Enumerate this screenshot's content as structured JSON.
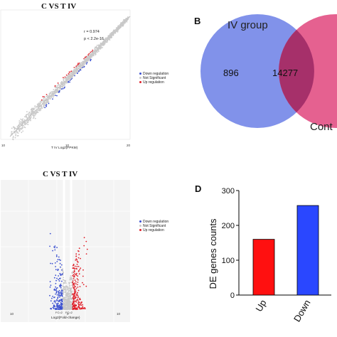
{
  "panel_labels": {
    "b": "B",
    "d": "D"
  },
  "legend": [
    {
      "label": "Down regulation",
      "color": "#3a4fd0"
    },
    {
      "label": "Not Significant",
      "color": "#c9c9c9"
    },
    {
      "label": "Up regulation",
      "color": "#e0202a"
    }
  ],
  "chart_data": [
    {
      "type": "scatter",
      "title": "C VS T IV",
      "annotations": [
        "r = 0.974",
        "p < 2.2e-16"
      ],
      "xlabel": "T IV Log2(FPKM)",
      "x_ticks": [
        "10",
        "10",
        "20"
      ],
      "ylim": [
        -10,
        20
      ],
      "xlim": [
        -10,
        20
      ],
      "series": [
        {
          "name": "Down regulation",
          "color": "#3a4fd0"
        },
        {
          "name": "Not Significant",
          "color": "#c9c9c9"
        },
        {
          "name": "Up regulation",
          "color": "#e0202a"
        }
      ]
    },
    {
      "type": "scatter",
      "title": "C VS T IV",
      "xlabel": "Log2(Fold-change)",
      "threshold_labels": [
        "FC=2",
        "FC=2"
      ],
      "x_ticks": [
        "10",
        "0",
        "10"
      ],
      "series": [
        {
          "name": "Down regulation",
          "color": "#3a4fd0"
        },
        {
          "name": "Not Significant",
          "color": "#c9c9c9"
        },
        {
          "name": "Up regulation",
          "color": "#e0202a"
        }
      ]
    },
    {
      "type": "venn",
      "sets": [
        {
          "name": "IV group",
          "only": 896,
          "color": "#6b7fe6"
        },
        {
          "name": "Cont",
          "color": "#e0457c"
        }
      ],
      "intersection": 14277
    },
    {
      "type": "bar",
      "categories": [
        "Up",
        "Down"
      ],
      "values": [
        160,
        257
      ],
      "colors": [
        "#ff1010",
        "#2a47ff"
      ],
      "ylabel": "DE genes counts",
      "ylim": [
        0,
        300
      ],
      "yticks": [
        0,
        100,
        200,
        300
      ]
    }
  ]
}
